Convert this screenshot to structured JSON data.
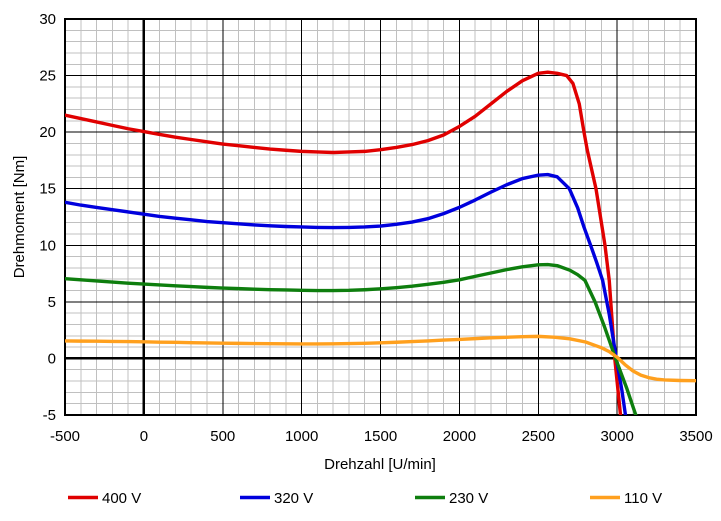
{
  "chart_data": {
    "type": "line",
    "title": "",
    "xlabel": "Drehzahl [U/min]",
    "ylabel": "Drehmoment [Nm]",
    "xlim": [
      -500,
      3500
    ],
    "ylim": [
      -5,
      30
    ],
    "x_ticks": [
      -500,
      0,
      500,
      1000,
      1500,
      2000,
      2500,
      3000,
      3500
    ],
    "y_ticks": [
      30,
      25,
      20,
      15,
      10,
      5,
      0,
      -5
    ],
    "x_major_step": 500,
    "x_minor_step": 100,
    "y_major_step": 5,
    "y_minor_step": 1,
    "grid": {
      "minor_color": "#c0c0c0",
      "major_color": "#000000",
      "zero_axis_color": "#000000",
      "border_color": "#000000"
    },
    "legend_position": "bottom",
    "series": [
      {
        "name": "400 V",
        "color": "#e00000",
        "points": [
          [
            -500,
            21.5
          ],
          [
            -400,
            21.2
          ],
          [
            -300,
            20.9
          ],
          [
            -200,
            20.6
          ],
          [
            -100,
            20.3
          ],
          [
            0,
            20.05
          ],
          [
            100,
            19.8
          ],
          [
            200,
            19.55
          ],
          [
            300,
            19.35
          ],
          [
            400,
            19.15
          ],
          [
            500,
            18.95
          ],
          [
            600,
            18.8
          ],
          [
            700,
            18.65
          ],
          [
            800,
            18.5
          ],
          [
            900,
            18.4
          ],
          [
            1000,
            18.3
          ],
          [
            1100,
            18.25
          ],
          [
            1200,
            18.2
          ],
          [
            1300,
            18.25
          ],
          [
            1400,
            18.3
          ],
          [
            1500,
            18.45
          ],
          [
            1600,
            18.65
          ],
          [
            1700,
            18.9
          ],
          [
            1800,
            19.25
          ],
          [
            1900,
            19.75
          ],
          [
            2000,
            20.5
          ],
          [
            2100,
            21.4
          ],
          [
            2200,
            22.5
          ],
          [
            2300,
            23.6
          ],
          [
            2400,
            24.55
          ],
          [
            2500,
            25.2
          ],
          [
            2560,
            25.3
          ],
          [
            2620,
            25.2
          ],
          [
            2680,
            25.0
          ],
          [
            2720,
            24.3
          ],
          [
            2760,
            22.5
          ],
          [
            2790,
            20.0
          ],
          [
            2811,
            18.4
          ],
          [
            2866,
            15.0
          ],
          [
            2923,
            10.0
          ],
          [
            2950,
            6.9
          ],
          [
            2985,
            0.0
          ],
          [
            3025,
            -5.5
          ]
        ]
      },
      {
        "name": "320 V",
        "color": "#0000dd",
        "points": [
          [
            -500,
            13.8
          ],
          [
            -400,
            13.55
          ],
          [
            -300,
            13.35
          ],
          [
            -200,
            13.15
          ],
          [
            -100,
            12.95
          ],
          [
            0,
            12.75
          ],
          [
            100,
            12.55
          ],
          [
            200,
            12.4
          ],
          [
            300,
            12.25
          ],
          [
            400,
            12.1
          ],
          [
            500,
            12.0
          ],
          [
            600,
            11.9
          ],
          [
            700,
            11.8
          ],
          [
            800,
            11.72
          ],
          [
            900,
            11.66
          ],
          [
            1000,
            11.62
          ],
          [
            1100,
            11.58
          ],
          [
            1200,
            11.57
          ],
          [
            1300,
            11.58
          ],
          [
            1400,
            11.62
          ],
          [
            1500,
            11.7
          ],
          [
            1600,
            11.85
          ],
          [
            1700,
            12.05
          ],
          [
            1800,
            12.35
          ],
          [
            1900,
            12.8
          ],
          [
            2000,
            13.35
          ],
          [
            2100,
            14.0
          ],
          [
            2200,
            14.7
          ],
          [
            2300,
            15.35
          ],
          [
            2400,
            15.9
          ],
          [
            2500,
            16.2
          ],
          [
            2560,
            16.25
          ],
          [
            2620,
            16.05
          ],
          [
            2697,
            15.0
          ],
          [
            2750,
            13.3
          ],
          [
            2790,
            11.6
          ],
          [
            2832,
            10.0
          ],
          [
            2870,
            8.5
          ],
          [
            2908,
            6.9
          ],
          [
            2950,
            3.9
          ],
          [
            2995,
            0.0
          ],
          [
            3030,
            -2.8
          ],
          [
            3058,
            -5.5
          ]
        ]
      },
      {
        "name": "230 V",
        "color": "#0e7e0e",
        "points": [
          [
            -500,
            7.05
          ],
          [
            -400,
            6.95
          ],
          [
            -300,
            6.85
          ],
          [
            -200,
            6.75
          ],
          [
            -100,
            6.65
          ],
          [
            0,
            6.57
          ],
          [
            100,
            6.5
          ],
          [
            200,
            6.42
          ],
          [
            300,
            6.35
          ],
          [
            400,
            6.28
          ],
          [
            500,
            6.22
          ],
          [
            600,
            6.17
          ],
          [
            700,
            6.12
          ],
          [
            800,
            6.08
          ],
          [
            900,
            6.05
          ],
          [
            1000,
            6.02
          ],
          [
            1100,
            6.0
          ],
          [
            1200,
            6.0
          ],
          [
            1300,
            6.02
          ],
          [
            1400,
            6.07
          ],
          [
            1500,
            6.15
          ],
          [
            1600,
            6.25
          ],
          [
            1700,
            6.38
          ],
          [
            1800,
            6.55
          ],
          [
            1900,
            6.73
          ],
          [
            2000,
            6.95
          ],
          [
            2100,
            7.25
          ],
          [
            2200,
            7.55
          ],
          [
            2300,
            7.85
          ],
          [
            2400,
            8.1
          ],
          [
            2500,
            8.27
          ],
          [
            2560,
            8.3
          ],
          [
            2620,
            8.2
          ],
          [
            2700,
            7.8
          ],
          [
            2750,
            7.4
          ],
          [
            2796,
            6.9
          ],
          [
            2860,
            5.0
          ],
          [
            2920,
            2.8
          ],
          [
            2990,
            0.0
          ],
          [
            3060,
            -2.6
          ],
          [
            3128,
            -5.4
          ]
        ]
      },
      {
        "name": "110 V",
        "color": "#ffa01e",
        "points": [
          [
            -500,
            1.55
          ],
          [
            -400,
            1.53
          ],
          [
            -300,
            1.52
          ],
          [
            -200,
            1.5
          ],
          [
            -100,
            1.49
          ],
          [
            0,
            1.47
          ],
          [
            100,
            1.44
          ],
          [
            200,
            1.42
          ],
          [
            300,
            1.39
          ],
          [
            400,
            1.37
          ],
          [
            500,
            1.35
          ],
          [
            600,
            1.33
          ],
          [
            700,
            1.31
          ],
          [
            800,
            1.3
          ],
          [
            900,
            1.29
          ],
          [
            1000,
            1.28
          ],
          [
            1100,
            1.28
          ],
          [
            1200,
            1.29
          ],
          [
            1300,
            1.31
          ],
          [
            1400,
            1.34
          ],
          [
            1500,
            1.38
          ],
          [
            1600,
            1.43
          ],
          [
            1700,
            1.49
          ],
          [
            1800,
            1.55
          ],
          [
            1900,
            1.62
          ],
          [
            2000,
            1.68
          ],
          [
            2100,
            1.75
          ],
          [
            2200,
            1.82
          ],
          [
            2300,
            1.87
          ],
          [
            2400,
            1.92
          ],
          [
            2500,
            1.95
          ],
          [
            2600,
            1.88
          ],
          [
            2700,
            1.73
          ],
          [
            2800,
            1.45
          ],
          [
            2900,
            0.95
          ],
          [
            2950,
            0.6
          ],
          [
            3000,
            0.1
          ],
          [
            3050,
            -0.55
          ],
          [
            3100,
            -1.1
          ],
          [
            3150,
            -1.48
          ],
          [
            3200,
            -1.7
          ],
          [
            3250,
            -1.83
          ],
          [
            3300,
            -1.9
          ],
          [
            3400,
            -1.95
          ],
          [
            3500,
            -1.97
          ]
        ]
      }
    ]
  }
}
